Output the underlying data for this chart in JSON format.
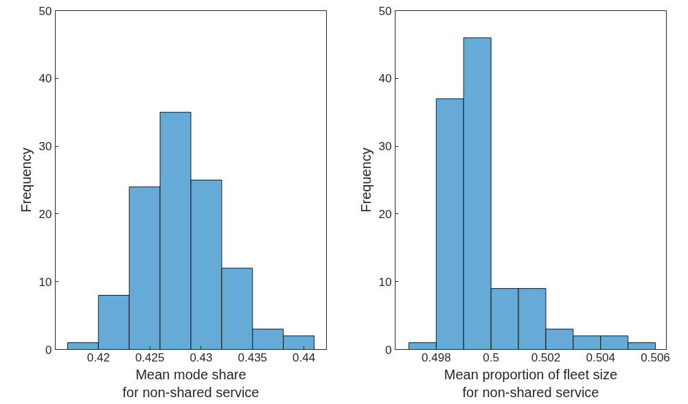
{
  "chart_data": [
    {
      "type": "histogram",
      "xlabel": "Mean mode share\nfor non-shared service",
      "ylabel": "Frequency",
      "bins": [
        0.417,
        0.42,
        0.423,
        0.426,
        0.429,
        0.432,
        0.435,
        0.438,
        0.441
      ],
      "values": [
        1,
        8,
        24,
        35,
        25,
        12,
        3,
        2
      ],
      "color": "#66aad7",
      "xlim": [
        0.4158,
        0.4422
      ],
      "xticks": [
        0.42,
        0.425,
        0.43,
        0.435,
        0.44
      ],
      "ylim": [
        0,
        50
      ],
      "yticks": [
        0,
        10,
        20,
        30,
        40,
        50
      ],
      "grid": false
    },
    {
      "type": "histogram",
      "xlabel": "Mean proportion of fleet size\nfor non-shared service",
      "ylabel": "Frequency",
      "bins": [
        0.497,
        0.498,
        0.499,
        0.5,
        0.501,
        0.502,
        0.503,
        0.504,
        0.505,
        0.506
      ],
      "values": [
        1,
        37,
        46,
        9,
        9,
        3,
        2,
        2,
        1
      ],
      "color": "#66aad7",
      "xlim": [
        0.4965,
        0.5064
      ],
      "xticks": [
        0.498,
        0.5,
        0.502,
        0.504,
        0.506
      ],
      "ylim": [
        0,
        50
      ],
      "yticks": [
        0,
        10,
        20,
        30,
        40,
        50
      ],
      "grid": false
    }
  ]
}
